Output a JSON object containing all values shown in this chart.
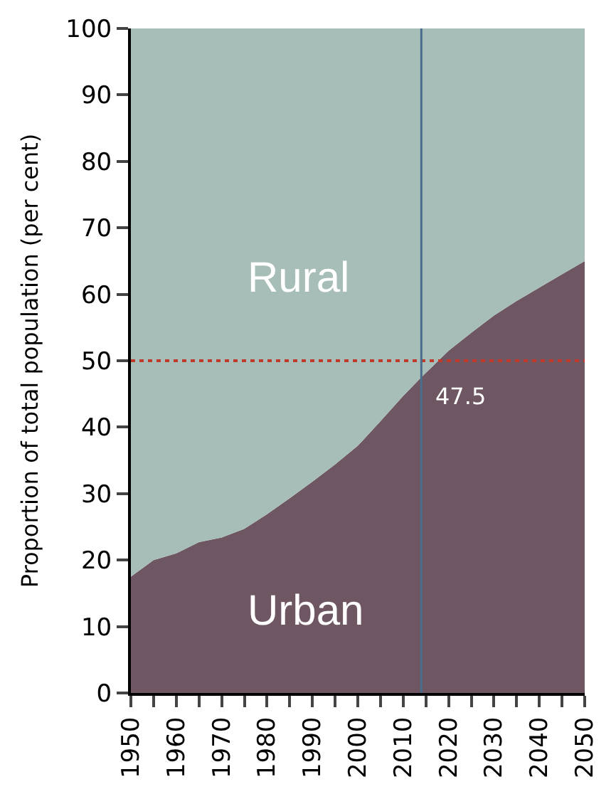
{
  "chart_data": {
    "type": "area",
    "stacked": true,
    "ylabel": "Proportion of total population (per cent)",
    "x": [
      1950,
      1955,
      1960,
      1965,
      1970,
      1975,
      1980,
      1985,
      1990,
      1995,
      2000,
      2005,
      2010,
      2014,
      2020,
      2025,
      2030,
      2035,
      2040,
      2045,
      2050
    ],
    "series": [
      {
        "name": "Urban",
        "color": "#6e5763",
        "values": [
          17.5,
          20,
          21,
          22.7,
          23.4,
          24.7,
          26.9,
          29.3,
          31.8,
          34.4,
          37.2,
          40.9,
          44.7,
          47.5,
          51.5,
          54.2,
          56.8,
          59,
          61,
          63,
          65
        ]
      },
      {
        "name": "Rural",
        "color": "#a7bdb7",
        "values": [
          82.5,
          80,
          79,
          77.3,
          76.6,
          75.3,
          73.1,
          70.7,
          68.2,
          65.6,
          62.8,
          59.1,
          55.3,
          52.5,
          48.5,
          45.8,
          43.2,
          41,
          39,
          37,
          35
        ]
      }
    ],
    "xlim": [
      1950,
      2050
    ],
    "xticks": [
      1950,
      {
        "value": 1955,
        "label": null
      },
      1960,
      {
        "value": 1965,
        "label": null
      },
      1970,
      {
        "value": 1975,
        "label": null
      },
      1980,
      {
        "value": 1985,
        "label": null
      },
      1990,
      {
        "value": 1995,
        "label": null
      },
      2000,
      {
        "value": 2005,
        "label": null
      },
      2010,
      {
        "value": 2015,
        "label": null
      },
      2020,
      {
        "value": 2025,
        "label": null
      },
      2030,
      {
        "value": 2035,
        "label": null
      },
      2040,
      {
        "value": 2045,
        "label": null
      },
      2050
    ],
    "ylim": [
      0,
      100
    ],
    "yticks": [
      0,
      10,
      20,
      30,
      40,
      50,
      60,
      70,
      80,
      90,
      100
    ],
    "ref_lines": [
      {
        "axis": "y",
        "value": 50,
        "color": "#c0392b",
        "line_style": "dotted"
      },
      {
        "axis": "x",
        "value": 2014,
        "color": "#4a6d8c",
        "line_style": "solid"
      }
    ],
    "annotations": [
      {
        "text": "47.5",
        "x": 2014,
        "y": 47.5
      }
    ],
    "legend": false
  }
}
